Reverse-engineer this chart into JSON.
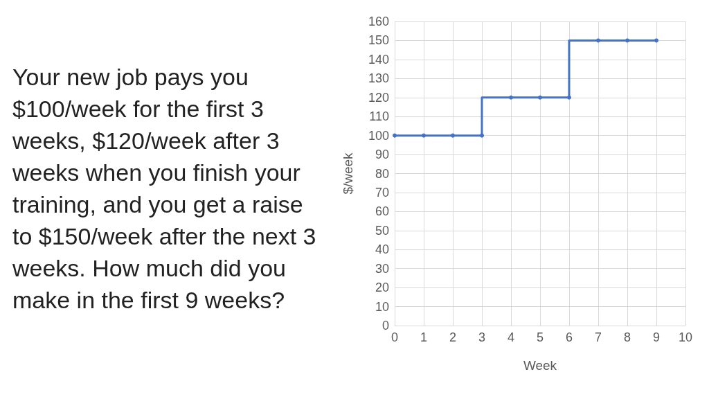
{
  "chart_data": {
    "type": "step",
    "xlabel": "Week",
    "ylabel": "$/week",
    "annotations": [
      "Your new job pays you $100/week for the first 3 weeks, $120/week after 3 weeks when you finish your training, and you get a raise to $150/week after the next 3 weeks. How much did you make in the first 9 weeks?"
    ],
    "x": [
      0,
      1,
      2,
      3,
      4,
      5,
      6,
      7,
      8,
      9
    ],
    "values": [
      100,
      100,
      100,
      100,
      120,
      120,
      120,
      150,
      150,
      150
    ],
    "color": "#4472c4",
    "marker": "circle",
    "grid": true,
    "xlim": [
      0,
      10
    ],
    "xticks": [
      0,
      1,
      2,
      3,
      4,
      5,
      6,
      7,
      8,
      9,
      10
    ],
    "ylim": [
      0,
      160
    ],
    "yticks": [
      0,
      10,
      20,
      30,
      40,
      50,
      60,
      70,
      80,
      90,
      100,
      110,
      120,
      130,
      140,
      150,
      160
    ]
  }
}
